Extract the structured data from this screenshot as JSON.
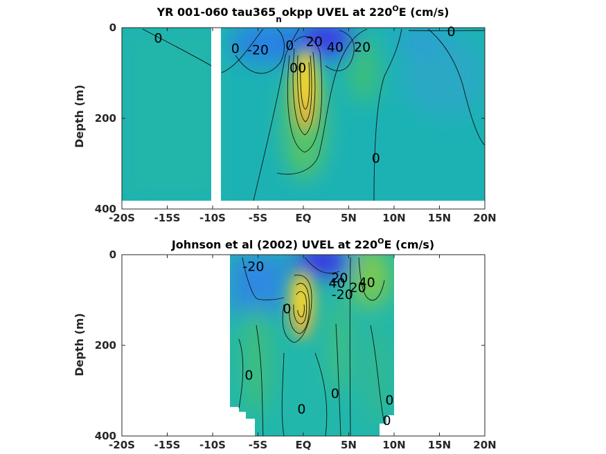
{
  "chart_data": [
    {
      "type": "heatmap",
      "title": "YR 001-060 tau365_nokpp UVEL at 220ᴼE (cm/s)",
      "title_parts": {
        "a": "YR 001-060 tau365",
        "sub": "n",
        "b": "okpp UVEL at 220",
        "sup": "O",
        "c": "E (cm/s)"
      },
      "ylabel": "Depth (m)",
      "xlabel": "",
      "x_ticks": [
        "-20S",
        "-15S",
        "-10S",
        "-5S",
        "EQ",
        "5N",
        "10N",
        "15N",
        "20N"
      ],
      "y_ticks": [
        "0",
        "200",
        "400"
      ],
      "xlim": [
        -20,
        20
      ],
      "ylim": [
        0,
        400
      ],
      "y_reversed": true,
      "data_gap_lat": [
        -10.5,
        -9.5
      ],
      "data_depth_max": 385,
      "colormap": "parula",
      "features": [
        {
          "name": "undercurrent core",
          "lat": 0,
          "depth": 130,
          "value": 100
        },
        {
          "name": "south equatorial current",
          "lat": 2,
          "depth": 30,
          "value": -60
        },
        {
          "name": "south equatorial current south",
          "lat": -4,
          "depth": 30,
          "value": -40
        },
        {
          "name": "countercurrent",
          "lat": 7,
          "depth": 60,
          "value": 30
        }
      ],
      "contour_labels": [
        {
          "text": "0",
          "lat": -16,
          "depth": 22
        },
        {
          "text": "0",
          "lat": -7.5,
          "depth": 45
        },
        {
          "text": "-20",
          "lat": -5,
          "depth": 48
        },
        {
          "text": "0",
          "lat": -1.5,
          "depth": 38
        },
        {
          "text": "20",
          "lat": 1.2,
          "depth": 30
        },
        {
          "text": "40",
          "lat": 3.5,
          "depth": 42
        },
        {
          "text": "20",
          "lat": 6.5,
          "depth": 42
        },
        {
          "text": "00",
          "lat": -0.6,
          "depth": 88
        },
        {
          "text": "0",
          "lat": 8,
          "depth": 287
        },
        {
          "text": "0",
          "lat": 16.3,
          "depth": 8
        }
      ]
    },
    {
      "type": "heatmap",
      "title": "Johnson et al (2002) UVEL at 220ᴼE (cm/s)",
      "title_parts": {
        "a": "Johnson et al (2002) UVEL at 220",
        "sup": "O",
        "b": "E (cm/s)"
      },
      "ylabel": "Depth (m)",
      "xlabel": "",
      "x_ticks": [
        "-20S",
        "-15S",
        "-10S",
        "-5S",
        "EQ",
        "5N",
        "10N",
        "15N",
        "20N"
      ],
      "y_ticks": [
        "0",
        "200",
        "400"
      ],
      "xlim": [
        -20,
        20
      ],
      "ylim": [
        0,
        400
      ],
      "y_reversed": true,
      "data_lat_range": [
        -8,
        10
      ],
      "colormap": "parula",
      "features": [
        {
          "name": "undercurrent core",
          "lat": 0,
          "depth": 115,
          "value": 100
        },
        {
          "name": "south equatorial current",
          "lat": 2,
          "depth": 20,
          "value": -60
        },
        {
          "name": "south equatorial current south",
          "lat": -5,
          "depth": 40,
          "value": -40
        },
        {
          "name": "countercurrent",
          "lat": 7,
          "depth": 40,
          "value": 40
        }
      ],
      "contour_labels": [
        {
          "text": "-20",
          "lat": -5.5,
          "depth": 25
        },
        {
          "text": "0",
          "lat": -1.8,
          "depth": 118
        },
        {
          "text": "20",
          "lat": 4,
          "depth": 50
        },
        {
          "text": "40",
          "lat": 3.7,
          "depth": 62
        },
        {
          "text": "-20",
          "lat": 4.3,
          "depth": 87
        },
        {
          "text": "20",
          "lat": 6,
          "depth": 72
        },
        {
          "text": "40",
          "lat": 7,
          "depth": 60
        },
        {
          "text": "0",
          "lat": -6,
          "depth": 265
        },
        {
          "text": "0",
          "lat": -0.2,
          "depth": 340
        },
        {
          "text": "0",
          "lat": 3.5,
          "depth": 305
        },
        {
          "text": "0",
          "lat": 9.5,
          "depth": 320
        },
        {
          "text": "0",
          "lat": 9.2,
          "depth": 365
        }
      ]
    }
  ]
}
